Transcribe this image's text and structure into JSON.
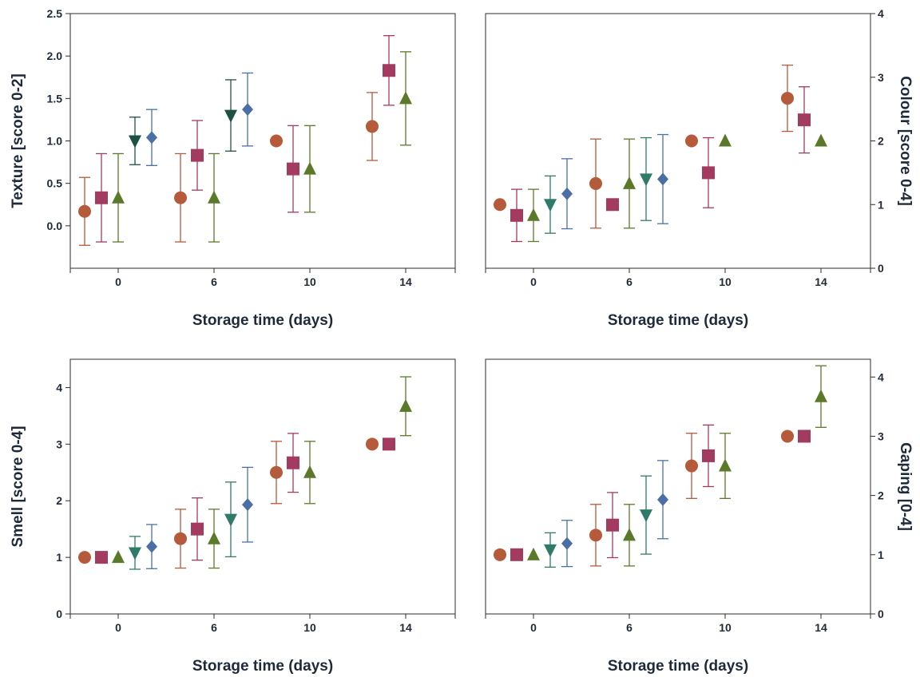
{
  "colors": {
    "orange": "#b55a3a",
    "magenta": "#a33a60",
    "green": "#5a7a2a",
    "teal": "#2f7b68",
    "darkgreen": "#1f5044",
    "blue": "#4a6fa5"
  },
  "chart_data": [
    {
      "type": "scatter",
      "xlabel": "Storage time (days)",
      "ylabel": "Texture [score 0-2]",
      "ylabel_side": "left",
      "x_ticks": [
        "0",
        "6",
        "10",
        "14"
      ],
      "y_ticks": [
        "0.0",
        "0.5",
        "1.0",
        "1.5",
        "2.0",
        "2.5"
      ],
      "ylim": [
        -0.5,
        2.5
      ],
      "grid": false,
      "points": [
        {
          "group": "0",
          "marker": "circle",
          "color": "orange",
          "y": 0.17,
          "err": 0.4
        },
        {
          "group": "0",
          "marker": "square",
          "color": "magenta",
          "y": 0.33,
          "err": 0.52
        },
        {
          "group": "0",
          "marker": "triangle-up",
          "color": "green",
          "y": 0.33,
          "err": 0.52
        },
        {
          "group": "0",
          "marker": "triangle-down",
          "color": "darkgreen",
          "y": 1.0,
          "err": 0.28
        },
        {
          "group": "0",
          "marker": "diamond",
          "color": "blue",
          "y": 1.04,
          "err": 0.33
        },
        {
          "group": "6",
          "marker": "circle",
          "color": "orange",
          "y": 0.33,
          "err": 0.52
        },
        {
          "group": "6",
          "marker": "square",
          "color": "magenta",
          "y": 0.83,
          "err": 0.41
        },
        {
          "group": "6",
          "marker": "triangle-up",
          "color": "green",
          "y": 0.33,
          "err": 0.52
        },
        {
          "group": "6",
          "marker": "triangle-down",
          "color": "darkgreen",
          "y": 1.3,
          "err": 0.42
        },
        {
          "group": "6",
          "marker": "diamond",
          "color": "blue",
          "y": 1.37,
          "err": 0.43
        },
        {
          "group": "10",
          "marker": "circle",
          "color": "orange",
          "y": 1.0,
          "err": 0
        },
        {
          "group": "10",
          "marker": "square",
          "color": "magenta",
          "y": 0.67,
          "err": 0.51
        },
        {
          "group": "10",
          "marker": "triangle-up",
          "color": "green",
          "y": 0.67,
          "err": 0.51
        },
        {
          "group": "14",
          "marker": "circle",
          "color": "orange",
          "y": 1.17,
          "err": 0.4
        },
        {
          "group": "14",
          "marker": "square",
          "color": "magenta",
          "y": 1.83,
          "err": 0.41
        },
        {
          "group": "14",
          "marker": "triangle-up",
          "color": "green",
          "y": 1.5,
          "err": 0.55
        }
      ]
    },
    {
      "type": "scatter",
      "xlabel": "Storage time (days)",
      "ylabel": "Colour [score 0-4]",
      "ylabel_side": "right",
      "x_ticks": [
        "0",
        "6",
        "10",
        "14"
      ],
      "y_ticks": [
        "0",
        "1",
        "2",
        "3",
        "4"
      ],
      "ylim": [
        0,
        4
      ],
      "grid": false,
      "points": [
        {
          "group": "0",
          "marker": "circle",
          "color": "orange",
          "y": 1.0,
          "err": 0
        },
        {
          "group": "0",
          "marker": "square",
          "color": "magenta",
          "y": 0.83,
          "err": 0.41
        },
        {
          "group": "0",
          "marker": "triangle-up",
          "color": "green",
          "y": 0.83,
          "err": 0.41
        },
        {
          "group": "0",
          "marker": "triangle-down",
          "color": "teal",
          "y": 1.0,
          "err": 0.45
        },
        {
          "group": "0",
          "marker": "diamond",
          "color": "blue",
          "y": 1.17,
          "err": 0.55
        },
        {
          "group": "6",
          "marker": "circle",
          "color": "orange",
          "y": 1.33,
          "err": 0.7
        },
        {
          "group": "6",
          "marker": "square",
          "color": "magenta",
          "y": 1.0,
          "err": 0
        },
        {
          "group": "6",
          "marker": "triangle-up",
          "color": "green",
          "y": 1.33,
          "err": 0.7
        },
        {
          "group": "6",
          "marker": "triangle-down",
          "color": "teal",
          "y": 1.4,
          "err": 0.65
        },
        {
          "group": "6",
          "marker": "diamond",
          "color": "blue",
          "y": 1.4,
          "err": 0.7
        },
        {
          "group": "10",
          "marker": "circle",
          "color": "orange",
          "y": 2.0,
          "err": 0
        },
        {
          "group": "10",
          "marker": "square",
          "color": "magenta",
          "y": 1.5,
          "err": 0.55
        },
        {
          "group": "10",
          "marker": "triangle-up",
          "color": "green",
          "y": 2.0,
          "err": 0
        },
        {
          "group": "14",
          "marker": "circle",
          "color": "orange",
          "y": 2.67,
          "err": 0.52
        },
        {
          "group": "14",
          "marker": "square",
          "color": "magenta",
          "y": 2.33,
          "err": 0.52
        },
        {
          "group": "14",
          "marker": "triangle-up",
          "color": "green",
          "y": 2.0,
          "err": 0
        }
      ]
    },
    {
      "type": "scatter",
      "xlabel": "Storage time (days)",
      "ylabel": "Smell [score 0-4]",
      "ylabel_side": "left",
      "x_ticks": [
        "0",
        "6",
        "10",
        "14"
      ],
      "y_ticks": [
        "0",
        "1",
        "2",
        "3",
        "4"
      ],
      "ylim": [
        0,
        4.5
      ],
      "grid": false,
      "points": [
        {
          "group": "0",
          "marker": "circle",
          "color": "orange",
          "y": 1.0,
          "err": 0
        },
        {
          "group": "0",
          "marker": "square",
          "color": "magenta",
          "y": 1.0,
          "err": 0
        },
        {
          "group": "0",
          "marker": "triangle-up",
          "color": "green",
          "y": 1.0,
          "err": 0
        },
        {
          "group": "0",
          "marker": "triangle-down",
          "color": "teal",
          "y": 1.08,
          "err": 0.29
        },
        {
          "group": "0",
          "marker": "diamond",
          "color": "blue",
          "y": 1.19,
          "err": 0.39
        },
        {
          "group": "6",
          "marker": "circle",
          "color": "orange",
          "y": 1.33,
          "err": 0.52
        },
        {
          "group": "6",
          "marker": "square",
          "color": "magenta",
          "y": 1.5,
          "err": 0.55
        },
        {
          "group": "6",
          "marker": "triangle-up",
          "color": "green",
          "y": 1.33,
          "err": 0.52
        },
        {
          "group": "6",
          "marker": "triangle-down",
          "color": "teal",
          "y": 1.67,
          "err": 0.66
        },
        {
          "group": "6",
          "marker": "diamond",
          "color": "blue",
          "y": 1.93,
          "err": 0.66
        },
        {
          "group": "10",
          "marker": "circle",
          "color": "orange",
          "y": 2.5,
          "err": 0.55
        },
        {
          "group": "10",
          "marker": "square",
          "color": "magenta",
          "y": 2.67,
          "err": 0.52
        },
        {
          "group": "10",
          "marker": "triangle-up",
          "color": "green",
          "y": 2.5,
          "err": 0.55
        },
        {
          "group": "14",
          "marker": "circle",
          "color": "orange",
          "y": 3.0,
          "err": 0
        },
        {
          "group": "14",
          "marker": "square",
          "color": "magenta",
          "y": 3.0,
          "err": 0
        },
        {
          "group": "14",
          "marker": "triangle-up",
          "color": "green",
          "y": 3.67,
          "err": 0.52
        }
      ]
    },
    {
      "type": "scatter",
      "xlabel": "Storage time (days)",
      "ylabel": "Gaping [0-4]",
      "ylabel_side": "right",
      "x_ticks": [
        "0",
        "6",
        "10",
        "14"
      ],
      "y_ticks": [
        "0",
        "1",
        "2",
        "3",
        "4"
      ],
      "ylim": [
        0,
        4.3
      ],
      "grid": false,
      "points": [
        {
          "group": "0",
          "marker": "circle",
          "color": "orange",
          "y": 1.0,
          "err": 0
        },
        {
          "group": "0",
          "marker": "square",
          "color": "magenta",
          "y": 1.0,
          "err": 0
        },
        {
          "group": "0",
          "marker": "triangle-up",
          "color": "green",
          "y": 1.0,
          "err": 0
        },
        {
          "group": "0",
          "marker": "triangle-down",
          "color": "teal",
          "y": 1.08,
          "err": 0.29
        },
        {
          "group": "0",
          "marker": "diamond",
          "color": "blue",
          "y": 1.19,
          "err": 0.39
        },
        {
          "group": "6",
          "marker": "circle",
          "color": "orange",
          "y": 1.33,
          "err": 0.52
        },
        {
          "group": "6",
          "marker": "square",
          "color": "magenta",
          "y": 1.5,
          "err": 0.55
        },
        {
          "group": "6",
          "marker": "triangle-up",
          "color": "green",
          "y": 1.33,
          "err": 0.52
        },
        {
          "group": "6",
          "marker": "triangle-down",
          "color": "teal",
          "y": 1.67,
          "err": 0.66
        },
        {
          "group": "6",
          "marker": "diamond",
          "color": "blue",
          "y": 1.93,
          "err": 0.66
        },
        {
          "group": "10",
          "marker": "circle",
          "color": "orange",
          "y": 2.5,
          "err": 0.55
        },
        {
          "group": "10",
          "marker": "square",
          "color": "magenta",
          "y": 2.67,
          "err": 0.52
        },
        {
          "group": "10",
          "marker": "triangle-up",
          "color": "green",
          "y": 2.5,
          "err": 0.55
        },
        {
          "group": "14",
          "marker": "circle",
          "color": "orange",
          "y": 3.0,
          "err": 0
        },
        {
          "group": "14",
          "marker": "square",
          "color": "magenta",
          "y": 3.0,
          "err": 0
        },
        {
          "group": "14",
          "marker": "triangle-up",
          "color": "green",
          "y": 3.67,
          "err": 0.52
        }
      ]
    }
  ]
}
